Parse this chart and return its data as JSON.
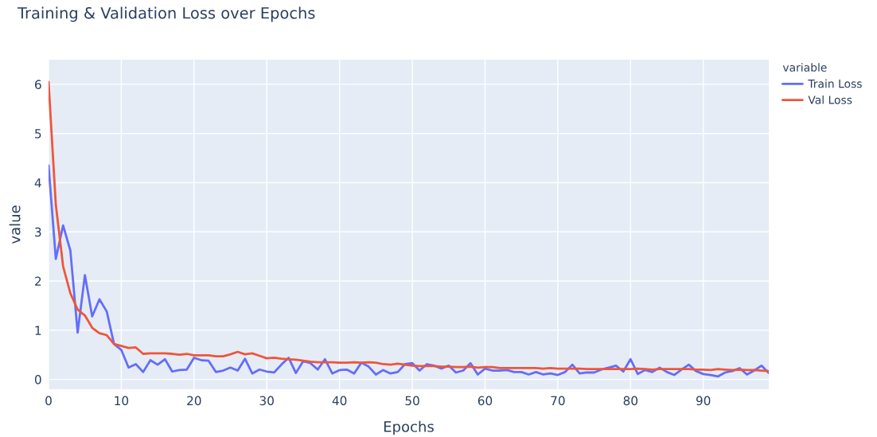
{
  "chart_data": {
    "type": "line",
    "title": "Training & Validation Loss over Epochs",
    "xlabel": "Epochs",
    "ylabel": "value",
    "legend_title": "variable",
    "x": [
      0,
      1,
      2,
      3,
      4,
      5,
      6,
      7,
      8,
      9,
      10,
      11,
      12,
      13,
      14,
      15,
      16,
      17,
      18,
      19,
      20,
      21,
      22,
      23,
      24,
      25,
      26,
      27,
      28,
      29,
      30,
      31,
      32,
      33,
      34,
      35,
      36,
      37,
      38,
      39,
      40,
      41,
      42,
      43,
      44,
      45,
      46,
      47,
      48,
      49,
      50,
      51,
      52,
      53,
      54,
      55,
      56,
      57,
      58,
      59,
      60,
      61,
      62,
      63,
      64,
      65,
      66,
      67,
      68,
      69,
      70,
      71,
      72,
      73,
      74,
      75,
      76,
      77,
      78,
      79,
      80,
      81,
      82,
      83,
      84,
      85,
      86,
      87,
      88,
      89,
      90,
      91,
      92,
      93,
      94,
      95,
      96,
      97,
      98,
      99
    ],
    "series": [
      {
        "name": "Train Loss",
        "color": "#636efa",
        "values": [
          4.35,
          2.45,
          3.13,
          2.62,
          0.95,
          2.12,
          1.28,
          1.63,
          1.38,
          0.72,
          0.6,
          0.24,
          0.31,
          0.15,
          0.39,
          0.3,
          0.41,
          0.16,
          0.19,
          0.2,
          0.44,
          0.39,
          0.38,
          0.15,
          0.18,
          0.24,
          0.18,
          0.42,
          0.12,
          0.2,
          0.16,
          0.14,
          0.3,
          0.44,
          0.13,
          0.37,
          0.33,
          0.2,
          0.41,
          0.12,
          0.19,
          0.2,
          0.12,
          0.34,
          0.26,
          0.1,
          0.19,
          0.12,
          0.15,
          0.31,
          0.33,
          0.18,
          0.31,
          0.28,
          0.22,
          0.28,
          0.14,
          0.18,
          0.33,
          0.1,
          0.22,
          0.18,
          0.18,
          0.19,
          0.15,
          0.15,
          0.1,
          0.15,
          0.1,
          0.12,
          0.09,
          0.15,
          0.3,
          0.12,
          0.14,
          0.14,
          0.2,
          0.24,
          0.28,
          0.16,
          0.41,
          0.11,
          0.19,
          0.15,
          0.24,
          0.15,
          0.09,
          0.2,
          0.3,
          0.17,
          0.11,
          0.09,
          0.06,
          0.14,
          0.17,
          0.23,
          0.1,
          0.18,
          0.28,
          0.13
        ]
      },
      {
        "name": "Val Loss",
        "color": "#ef553b",
        "values": [
          6.05,
          3.55,
          2.3,
          1.75,
          1.42,
          1.3,
          1.05,
          0.94,
          0.9,
          0.72,
          0.68,
          0.64,
          0.65,
          0.52,
          0.53,
          0.53,
          0.53,
          0.52,
          0.5,
          0.52,
          0.49,
          0.49,
          0.49,
          0.47,
          0.47,
          0.51,
          0.56,
          0.51,
          0.53,
          0.48,
          0.43,
          0.44,
          0.42,
          0.41,
          0.4,
          0.38,
          0.36,
          0.35,
          0.35,
          0.35,
          0.34,
          0.34,
          0.35,
          0.34,
          0.35,
          0.34,
          0.31,
          0.3,
          0.32,
          0.3,
          0.28,
          0.27,
          0.27,
          0.27,
          0.26,
          0.26,
          0.25,
          0.25,
          0.26,
          0.24,
          0.25,
          0.25,
          0.23,
          0.23,
          0.23,
          0.23,
          0.23,
          0.23,
          0.22,
          0.23,
          0.22,
          0.22,
          0.22,
          0.22,
          0.21,
          0.21,
          0.21,
          0.21,
          0.21,
          0.21,
          0.21,
          0.22,
          0.21,
          0.2,
          0.21,
          0.21,
          0.21,
          0.21,
          0.21,
          0.2,
          0.2,
          0.19,
          0.21,
          0.2,
          0.19,
          0.2,
          0.19,
          0.19,
          0.18,
          0.17
        ]
      }
    ],
    "xlim": [
      0,
      99
    ],
    "xticks": [
      0,
      10,
      20,
      30,
      40,
      50,
      60,
      70,
      80,
      90
    ],
    "ylim": [
      -0.2,
      6.5
    ],
    "yticks": [
      0,
      1,
      2,
      3,
      4,
      5,
      6
    ],
    "grid": true,
    "legend": "top right",
    "marker": "none",
    "line_style": "solid"
  }
}
